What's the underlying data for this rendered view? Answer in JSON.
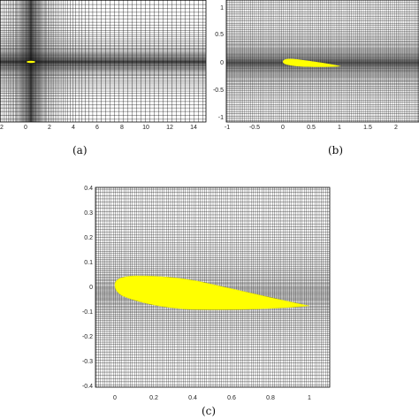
{
  "figure": {
    "panels": [
      {
        "id": "a",
        "caption": "(a)",
        "x_ticks": [
          "2",
          "0",
          "2",
          "4",
          "6",
          "8",
          "10",
          "12",
          "14"
        ],
        "y_ticks": []
      },
      {
        "id": "b",
        "caption": "(b)",
        "x_ticks": [
          "-1",
          "-0.5",
          "0",
          "0.5",
          "1",
          "1.5",
          "2"
        ],
        "y_ticks": [
          "1",
          "0.5",
          "0",
          "-0.5",
          "-1"
        ]
      },
      {
        "id": "c",
        "caption": "(c)",
        "x_ticks": [
          "0",
          "0.2",
          "0.4",
          "0.6",
          "0.8",
          "1"
        ],
        "y_ticks": [
          "0.4",
          "0.3",
          "0.2",
          "0.1",
          "0",
          "-0.1",
          "-0.2",
          "-0.3",
          "-0.4"
        ]
      }
    ],
    "colors": {
      "airfoil": "#ffff00",
      "grid_line": "#000000",
      "background": "#ffffff"
    }
  }
}
